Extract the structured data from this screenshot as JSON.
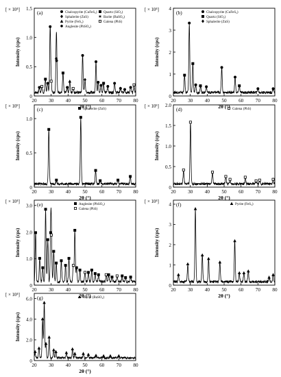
{
  "figure": {
    "x_label": "2θ (°)",
    "y_label": "Intensity (cps)"
  },
  "chart_data": [
    {
      "panel": "(a)",
      "type": "line",
      "scale": "[ × 10⁴]",
      "xlim": [
        20,
        80
      ],
      "ylim": [
        0,
        1.5
      ],
      "yticks": [
        0,
        0.5,
        1.0,
        1.5
      ],
      "ytick_labels": [
        "0",
        "0.5",
        "1.0",
        "1.5"
      ],
      "xticks": [
        20,
        30,
        40,
        50,
        60,
        70,
        80
      ],
      "legend": [
        {
          "marker": "filled-circle",
          "label": "Chalcopyrite (CuFeS₂)"
        },
        {
          "marker": "filled-square",
          "label": "Quartz (SiO₂)"
        },
        {
          "marker": "filled-diamond",
          "label": "Sphalerite (ZnS)"
        },
        {
          "marker": "filled-star",
          "label": "Barite (BaSO₄)"
        },
        {
          "marker": "filled-triangle",
          "label": "Pyrite (FeS₂)"
        },
        {
          "marker": "open-square",
          "label": "Galena (PbS)"
        },
        {
          "marker": "filled-hexagon",
          "label": "Anglesite (PbSO₄)"
        }
      ],
      "peaks": [
        {
          "x": 23.0,
          "y": 0.1,
          "m": "filled-circle"
        },
        {
          "x": 24.5,
          "y": 0.12,
          "m": "open-square"
        },
        {
          "x": 26.6,
          "y": 0.26,
          "m": "filled-square"
        },
        {
          "x": 28.0,
          "y": 0.18,
          "m": "filled-circle"
        },
        {
          "x": 29.4,
          "y": 1.28,
          "m": "filled-circle"
        },
        {
          "x": 30.0,
          "y": 0.22,
          "m": "open-square"
        },
        {
          "x": 33.0,
          "y": 0.66,
          "m": "filled-hexagon"
        },
        {
          "x": 33.2,
          "y": 0.62,
          "m": "filled-circle"
        },
        {
          "x": 37.0,
          "y": 0.38,
          "m": "filled-square"
        },
        {
          "x": 39.5,
          "y": 0.1,
          "m": "filled-circle"
        },
        {
          "x": 41.0,
          "y": 0.22,
          "m": "filled-triangle"
        },
        {
          "x": 43.0,
          "y": 0.08,
          "m": "open-square"
        },
        {
          "x": 48.6,
          "y": 0.72,
          "m": "filled-circle"
        },
        {
          "x": 50.0,
          "y": 0.25,
          "m": "filled-diamond"
        },
        {
          "x": 56.5,
          "y": 0.6,
          "m": "filled-circle"
        },
        {
          "x": 57.8,
          "y": 0.2,
          "m": "filled-circle"
        },
        {
          "x": 59.5,
          "y": 0.14,
          "m": "filled-circle"
        },
        {
          "x": 61.0,
          "y": 0.18,
          "m": "filled-square"
        },
        {
          "x": 63.5,
          "y": 0.12,
          "m": "filled-circle"
        },
        {
          "x": 67.5,
          "y": 0.18,
          "m": "filled-circle"
        },
        {
          "x": 71.0,
          "y": 0.08,
          "m": "filled-circle"
        },
        {
          "x": 73.5,
          "y": 0.06,
          "m": "filled-circle"
        },
        {
          "x": 77.0,
          "y": 0.1,
          "m": "filled-circle"
        },
        {
          "x": 79.0,
          "y": 0.15,
          "m": "open-square"
        }
      ]
    },
    {
      "panel": "(b)",
      "type": "line",
      "scale": "[ × 10⁴]",
      "xlim": [
        20,
        80
      ],
      "ylim": [
        0,
        4
      ],
      "yticks": [
        0,
        1,
        2,
        3,
        4
      ],
      "ytick_labels": [
        "0",
        "1",
        "2",
        "3",
        "4"
      ],
      "xticks": [
        20,
        30,
        40,
        50,
        60,
        70,
        80
      ],
      "legend": [
        {
          "marker": "filled-circle",
          "label": "Chalcopyrite (CuFeS₂)"
        },
        {
          "marker": "filled-square",
          "label": "Quartz (SiO₂)"
        },
        {
          "marker": "filled-diamond",
          "label": "Sphalerite (ZnS)"
        }
      ],
      "peaks": [
        {
          "x": 26.6,
          "y": 0.9,
          "m": "filled-square"
        },
        {
          "x": 29.4,
          "y": 3.6,
          "m": "filled-circle"
        },
        {
          "x": 31.5,
          "y": 1.5,
          "m": "filled-square"
        },
        {
          "x": 33.2,
          "y": 0.4,
          "m": "filled-circle"
        },
        {
          "x": 36.0,
          "y": 0.35,
          "m": "filled-square"
        },
        {
          "x": 39.5,
          "y": 0.3,
          "m": "filled-circle"
        },
        {
          "x": 48.6,
          "y": 1.3,
          "m": "filled-circle"
        },
        {
          "x": 56.5,
          "y": 0.8,
          "m": "filled-circle"
        },
        {
          "x": 59.0,
          "y": 0.35,
          "m": "filled-square"
        },
        {
          "x": 70.0,
          "y": 0.2,
          "m": "filled-circle"
        },
        {
          "x": 79.0,
          "y": 0.2,
          "m": "filled-circle"
        }
      ]
    },
    {
      "panel": "(c)",
      "type": "line",
      "scale": "[ × 10⁵]",
      "xlim": [
        20,
        80
      ],
      "ylim": [
        0,
        1.2
      ],
      "yticks": [
        0,
        0.5,
        1.0
      ],
      "ytick_labels": [
        "0",
        "0.5",
        "1.0"
      ],
      "xticks": [
        20,
        30,
        40,
        50,
        60,
        70,
        80
      ],
      "legend": [
        {
          "marker": "filled-square",
          "label": "Sphalerite (ZnS)"
        }
      ],
      "peaks": [
        {
          "x": 28.6,
          "y": 0.9,
          "m": "filled-square"
        },
        {
          "x": 33.1,
          "y": 0.06,
          "m": "filled-square"
        },
        {
          "x": 47.5,
          "y": 1.1,
          "m": "filled-square"
        },
        {
          "x": 56.3,
          "y": 0.22,
          "m": "filled-square"
        },
        {
          "x": 59.0,
          "y": 0.05,
          "m": "filled-square"
        },
        {
          "x": 69.5,
          "y": 0.06,
          "m": "filled-square"
        },
        {
          "x": 76.8,
          "y": 0.12,
          "m": "filled-square"
        }
      ]
    },
    {
      "panel": "(d)",
      "type": "line",
      "scale": "[ × 10⁵]",
      "xlim": [
        20,
        80
      ],
      "ylim": [
        0,
        2.0
      ],
      "yticks": [
        0,
        0.5,
        1.0,
        1.5,
        2.0
      ],
      "ytick_labels": [
        "0",
        "0.5",
        "1.0",
        "1.5",
        "2.0"
      ],
      "xticks": [
        20,
        30,
        40,
        50,
        60,
        70,
        80
      ],
      "legend": [
        {
          "marker": "open-square",
          "label": "Galena (PbS)"
        }
      ],
      "peaks": [
        {
          "x": 26.0,
          "y": 0.38,
          "m": "open-square"
        },
        {
          "x": 30.1,
          "y": 1.7,
          "m": "open-square"
        },
        {
          "x": 43.1,
          "y": 0.32,
          "m": "open-square"
        },
        {
          "x": 51.0,
          "y": 0.2,
          "m": "open-square"
        },
        {
          "x": 53.5,
          "y": 0.12,
          "m": "open-square"
        },
        {
          "x": 62.5,
          "y": 0.18,
          "m": "open-square"
        },
        {
          "x": 68.9,
          "y": 0.08,
          "m": "open-square"
        },
        {
          "x": 71.0,
          "y": 0.1,
          "m": "open-square"
        },
        {
          "x": 79.0,
          "y": 0.12,
          "m": "open-square"
        }
      ]
    },
    {
      "panel": "(e)",
      "type": "line",
      "scale": "[ × 10⁴]",
      "xlim": [
        20,
        80
      ],
      "ylim": [
        0,
        3.2
      ],
      "yticks": [
        0,
        1,
        2,
        3
      ],
      "ytick_labels": [
        "0",
        "1.0",
        "2.0",
        "3.0"
      ],
      "xticks": [
        20,
        30,
        40,
        50,
        60,
        70,
        80
      ],
      "legend": [
        {
          "marker": "filled-square",
          "label": "Anglesite (PbSO₄)"
        },
        {
          "marker": "open-square",
          "label": "Galena (PbS)"
        }
      ],
      "peaks": [
        {
          "x": 20.8,
          "y": 2.1,
          "m": "filled-square"
        },
        {
          "x": 23.2,
          "y": 1.0,
          "m": "filled-square"
        },
        {
          "x": 25.0,
          "y": 0.6,
          "m": "filled-square"
        },
        {
          "x": 26.7,
          "y": 3.1,
          "m": "filled-square"
        },
        {
          "x": 28.0,
          "y": 1.8,
          "m": "filled-square"
        },
        {
          "x": 29.7,
          "y": 2.1,
          "m": "filled-square"
        },
        {
          "x": 30.1,
          "y": 2.0,
          "m": "open-square"
        },
        {
          "x": 31.5,
          "y": 1.3,
          "m": "filled-square"
        },
        {
          "x": 33.0,
          "y": 0.8,
          "m": "filled-square"
        },
        {
          "x": 36.0,
          "y": 0.9,
          "m": "filled-square"
        },
        {
          "x": 38.5,
          "y": 0.7,
          "m": "filled-square"
        },
        {
          "x": 40.5,
          "y": 1.0,
          "m": "filled-square"
        },
        {
          "x": 43.1,
          "y": 0.7,
          "m": "open-square"
        },
        {
          "x": 44.0,
          "y": 2.2,
          "m": "filled-square"
        },
        {
          "x": 45.0,
          "y": 0.6,
          "m": "filled-square"
        },
        {
          "x": 47.0,
          "y": 0.5,
          "m": "filled-square"
        },
        {
          "x": 50.0,
          "y": 0.4,
          "m": "open-square"
        },
        {
          "x": 52.0,
          "y": 0.4,
          "m": "filled-square"
        },
        {
          "x": 54.0,
          "y": 0.5,
          "m": "filled-square"
        },
        {
          "x": 56.0,
          "y": 0.35,
          "m": "filled-square"
        },
        {
          "x": 58.0,
          "y": 0.3,
          "m": "filled-square"
        },
        {
          "x": 62.5,
          "y": 0.3,
          "m": "open-square"
        },
        {
          "x": 64.0,
          "y": 0.3,
          "m": "filled-square"
        },
        {
          "x": 66.0,
          "y": 0.2,
          "m": "filled-square"
        },
        {
          "x": 69.0,
          "y": 0.25,
          "m": "open-square"
        },
        {
          "x": 72.0,
          "y": 0.25,
          "m": "filled-square"
        },
        {
          "x": 74.0,
          "y": 0.18,
          "m": "filled-square"
        },
        {
          "x": 77.0,
          "y": 0.2,
          "m": "filled-square"
        }
      ]
    },
    {
      "panel": "(f)",
      "type": "line",
      "scale": "[ × 10⁴]",
      "xlim": [
        20,
        80
      ],
      "ylim": [
        0,
        4.2
      ],
      "yticks": [
        0,
        1,
        2,
        3,
        4
      ],
      "ytick_labels": [
        "0",
        "1",
        "2",
        "3",
        "4"
      ],
      "xticks": [
        20,
        30,
        40,
        50,
        60,
        70,
        80
      ],
      "legend": [
        {
          "marker": "filled-triangle",
          "label": "Pyrite (FeS₂)"
        }
      ],
      "peaks": [
        {
          "x": 23.0,
          "y": 0.4,
          "m": "filled-triangle"
        },
        {
          "x": 28.5,
          "y": 1.0,
          "m": "filled-triangle"
        },
        {
          "x": 33.0,
          "y": 4.1,
          "m": "filled-triangle"
        },
        {
          "x": 37.1,
          "y": 1.5,
          "m": "filled-triangle"
        },
        {
          "x": 40.8,
          "y": 1.3,
          "m": "filled-triangle"
        },
        {
          "x": 47.5,
          "y": 1.1,
          "m": "filled-triangle"
        },
        {
          "x": 56.3,
          "y": 2.3,
          "m": "filled-triangle"
        },
        {
          "x": 59.0,
          "y": 0.5,
          "m": "filled-triangle"
        },
        {
          "x": 61.7,
          "y": 0.5,
          "m": "filled-triangle"
        },
        {
          "x": 64.3,
          "y": 0.6,
          "m": "filled-triangle"
        },
        {
          "x": 76.6,
          "y": 0.25,
          "m": "filled-triangle"
        },
        {
          "x": 79.0,
          "y": 0.4,
          "m": "filled-triangle"
        }
      ]
    },
    {
      "panel": "(g)",
      "type": "line",
      "scale": "[ × 10⁴]",
      "xlim": [
        20,
        80
      ],
      "ylim": [
        0,
        6.5
      ],
      "yticks": [
        0,
        2,
        4,
        6
      ],
      "ytick_labels": [
        "0",
        "2.0",
        "4.0",
        "6.0"
      ],
      "xticks": [
        20,
        30,
        40,
        50,
        60,
        70,
        80
      ],
      "legend": [
        {
          "marker": "filled-triangle",
          "label": "Barite (BaSO₄)"
        }
      ],
      "peaks": [
        {
          "x": 20.5,
          "y": 0.6,
          "m": "filled-triangle"
        },
        {
          "x": 22.8,
          "y": 1.0,
          "m": "filled-triangle"
        },
        {
          "x": 24.9,
          "y": 4.2,
          "m": "filled-triangle"
        },
        {
          "x": 25.9,
          "y": 6.0,
          "m": "filled-triangle"
        },
        {
          "x": 26.9,
          "y": 1.5,
          "m": "filled-triangle"
        },
        {
          "x": 28.8,
          "y": 2.2,
          "m": "filled-triangle"
        },
        {
          "x": 31.5,
          "y": 0.8,
          "m": "filled-triangle"
        },
        {
          "x": 32.8,
          "y": 0.6,
          "m": "filled-triangle"
        },
        {
          "x": 39.0,
          "y": 0.5,
          "m": "filled-triangle"
        },
        {
          "x": 42.6,
          "y": 0.9,
          "m": "filled-triangle"
        },
        {
          "x": 44.0,
          "y": 0.4,
          "m": "filled-triangle"
        },
        {
          "x": 49.0,
          "y": 0.4,
          "m": "filled-triangle"
        },
        {
          "x": 52.0,
          "y": 0.3,
          "m": "filled-triangle"
        },
        {
          "x": 56.5,
          "y": 0.2,
          "m": "filled-triangle"
        },
        {
          "x": 61.0,
          "y": 0.15,
          "m": "filled-triangle"
        },
        {
          "x": 65.0,
          "y": 0.15,
          "m": "filled-triangle"
        },
        {
          "x": 70.0,
          "y": 0.15,
          "m": "filled-triangle"
        }
      ]
    }
  ]
}
